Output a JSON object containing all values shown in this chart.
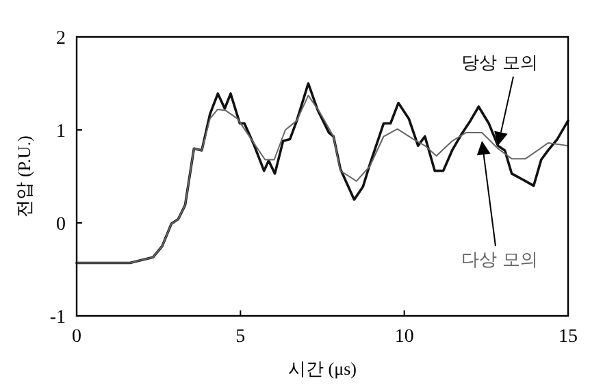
{
  "chart_data": {
    "type": "line",
    "xlabel": "시간 (μs)",
    "ylabel": "전압 (P.U.)",
    "xlim": [
      0,
      15
    ],
    "ylim": [
      -1,
      2
    ],
    "xticks": [
      0,
      5,
      10,
      15
    ],
    "yticks": [
      -1,
      0,
      1,
      2
    ],
    "marker": "none",
    "line_style": "solid",
    "series": [
      {
        "name": "당상 모의",
        "color": "#111111",
        "x": [
          0,
          1.63,
          2.33,
          2.61,
          2.89,
          3.1,
          3.31,
          3.58,
          3.82,
          4.07,
          4.31,
          4.52,
          4.7,
          4.98,
          5.12,
          5.4,
          5.72,
          5.86,
          6.05,
          6.3,
          6.51,
          6.72,
          7.07,
          7.35,
          7.7,
          7.84,
          8.05,
          8.47,
          8.74,
          8.95,
          9.37,
          9.58,
          9.82,
          10.14,
          10.42,
          10.63,
          10.93,
          11.19,
          11.46,
          11.74,
          12.02,
          12.27,
          12.58,
          12.86,
          13.07,
          13.28,
          13.49,
          13.7,
          13.95,
          14.18,
          14.39,
          14.67,
          15
        ],
        "values": [
          -0.43,
          -0.43,
          -0.37,
          -0.25,
          -0.01,
          0.04,
          0.19,
          0.8,
          0.78,
          1.17,
          1.39,
          1.23,
          1.39,
          1.07,
          1.07,
          0.85,
          0.56,
          0.67,
          0.53,
          0.88,
          0.9,
          1.1,
          1.5,
          1.22,
          0.97,
          0.93,
          0.58,
          0.25,
          0.39,
          0.63,
          1.07,
          1.07,
          1.29,
          1.12,
          0.83,
          0.93,
          0.56,
          0.56,
          0.78,
          0.95,
          1.1,
          1.25,
          1.07,
          0.83,
          0.78,
          0.53,
          0.49,
          0.45,
          0.4,
          0.68,
          0.78,
          0.9,
          1.1
        ]
      },
      {
        "name": "다상 모의",
        "color": "#666666",
        "x": [
          0,
          1.63,
          2.33,
          2.61,
          2.89,
          3.1,
          3.31,
          3.58,
          3.82,
          4.07,
          4.3,
          4.54,
          4.91,
          5.33,
          5.75,
          6.03,
          6.37,
          6.72,
          7.07,
          7.42,
          7.84,
          8.05,
          8.54,
          8.95,
          9.37,
          9.79,
          10.28,
          10.63,
          10.98,
          11.46,
          11.88,
          12.37,
          12.86,
          13.28,
          13.7,
          14.11,
          14.39,
          15
        ],
        "values": [
          -0.43,
          -0.43,
          -0.37,
          -0.25,
          -0.01,
          0.04,
          0.19,
          0.8,
          0.78,
          1.12,
          1.22,
          1.21,
          1.12,
          0.9,
          0.68,
          0.68,
          1.0,
          1.1,
          1.37,
          1.19,
          0.93,
          0.56,
          0.45,
          0.61,
          0.93,
          1.01,
          0.9,
          0.83,
          0.72,
          0.88,
          0.97,
          0.97,
          0.8,
          0.69,
          0.69,
          0.79,
          0.86,
          0.83
        ]
      }
    ]
  }
}
